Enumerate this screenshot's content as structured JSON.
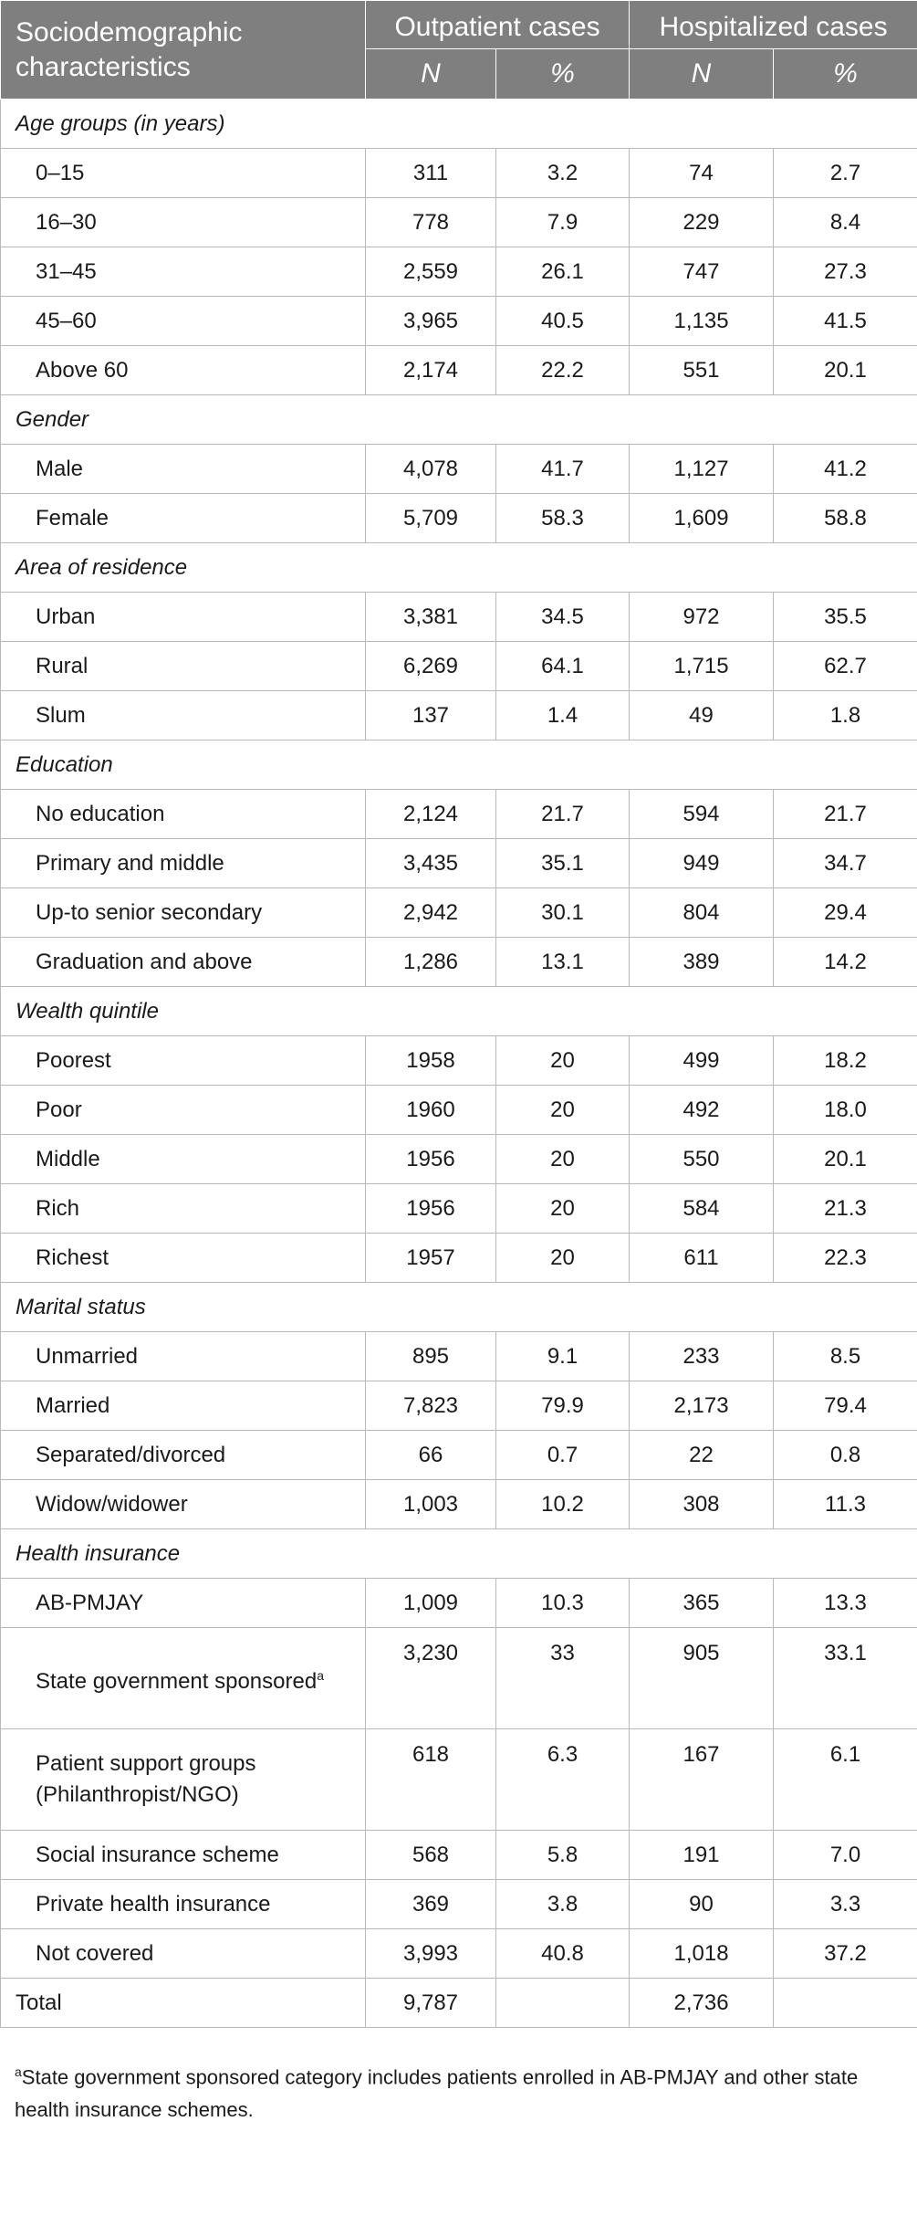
{
  "table": {
    "header": {
      "title": "Sociodemographic characteristics",
      "groups": [
        "Outpatient cases",
        "Hospitalized cases"
      ],
      "subheaders": [
        "N",
        "%",
        "N",
        "%"
      ]
    },
    "sections": [
      {
        "name": "Age groups (in years)",
        "rows": [
          {
            "label": "0–15",
            "op_n": "311",
            "op_pct": "3.2",
            "hp_n": "74",
            "hp_pct": "2.7"
          },
          {
            "label": "16–30",
            "op_n": "778",
            "op_pct": "7.9",
            "hp_n": "229",
            "hp_pct": "8.4"
          },
          {
            "label": "31–45",
            "op_n": "2,559",
            "op_pct": "26.1",
            "hp_n": "747",
            "hp_pct": "27.3"
          },
          {
            "label": "45–60",
            "op_n": "3,965",
            "op_pct": "40.5",
            "hp_n": "1,135",
            "hp_pct": "41.5"
          },
          {
            "label": "Above 60",
            "op_n": "2,174",
            "op_pct": "22.2",
            "hp_n": "551",
            "hp_pct": "20.1"
          }
        ]
      },
      {
        "name": "Gender",
        "rows": [
          {
            "label": "Male",
            "op_n": "4,078",
            "op_pct": "41.7",
            "hp_n": "1,127",
            "hp_pct": "41.2"
          },
          {
            "label": "Female",
            "op_n": "5,709",
            "op_pct": "58.3",
            "hp_n": "1,609",
            "hp_pct": "58.8"
          }
        ]
      },
      {
        "name": "Area of residence",
        "rows": [
          {
            "label": "Urban",
            "op_n": "3,381",
            "op_pct": "34.5",
            "hp_n": "972",
            "hp_pct": "35.5"
          },
          {
            "label": "Rural",
            "op_n": "6,269",
            "op_pct": "64.1",
            "hp_n": "1,715",
            "hp_pct": "62.7"
          },
          {
            "label": "Slum",
            "op_n": "137",
            "op_pct": "1.4",
            "hp_n": "49",
            "hp_pct": "1.8"
          }
        ]
      },
      {
        "name": "Education",
        "rows": [
          {
            "label": "No education",
            "op_n": "2,124",
            "op_pct": "21.7",
            "hp_n": "594",
            "hp_pct": "21.7"
          },
          {
            "label": "Primary and middle",
            "op_n": "3,435",
            "op_pct": "35.1",
            "hp_n": "949",
            "hp_pct": "34.7"
          },
          {
            "label": "Up-to senior secondary",
            "op_n": "2,942",
            "op_pct": "30.1",
            "hp_n": "804",
            "hp_pct": "29.4"
          },
          {
            "label": "Graduation and above",
            "op_n": "1,286",
            "op_pct": "13.1",
            "hp_n": "389",
            "hp_pct": "14.2"
          }
        ]
      },
      {
        "name": "Wealth quintile",
        "rows": [
          {
            "label": "Poorest",
            "op_n": "1958",
            "op_pct": "20",
            "hp_n": "499",
            "hp_pct": "18.2"
          },
          {
            "label": "Poor",
            "op_n": "1960",
            "op_pct": "20",
            "hp_n": "492",
            "hp_pct": "18.0"
          },
          {
            "label": "Middle",
            "op_n": "1956",
            "op_pct": "20",
            "hp_n": "550",
            "hp_pct": "20.1"
          },
          {
            "label": "Rich",
            "op_n": "1956",
            "op_pct": "20",
            "hp_n": "584",
            "hp_pct": "21.3"
          },
          {
            "label": "Richest",
            "op_n": "1957",
            "op_pct": "20",
            "hp_n": "611",
            "hp_pct": "22.3"
          }
        ]
      },
      {
        "name": "Marital status",
        "rows": [
          {
            "label": "Unmarried",
            "op_n": "895",
            "op_pct": "9.1",
            "hp_n": "233",
            "hp_pct": "8.5"
          },
          {
            "label": "Married",
            "op_n": "7,823",
            "op_pct": "79.9",
            "hp_n": "2,173",
            "hp_pct": "79.4"
          },
          {
            "label": "Separated/divorced",
            "op_n": "66",
            "op_pct": "0.7",
            "hp_n": "22",
            "hp_pct": "0.8"
          },
          {
            "label": "Widow/widower",
            "op_n": "1,003",
            "op_pct": "10.2",
            "hp_n": "308",
            "hp_pct": "11.3"
          }
        ]
      },
      {
        "name": "Health insurance",
        "rows": [
          {
            "label": "AB-PMJAY",
            "op_n": "1,009",
            "op_pct": "10.3",
            "hp_n": "365",
            "hp_pct": "13.3"
          },
          {
            "label": "State government sponsored",
            "sup": "a",
            "op_n": "3,230",
            "op_pct": "33",
            "hp_n": "905",
            "hp_pct": "33.1"
          },
          {
            "label": "Patient support groups (Philanthropist/NGO)",
            "op_n": "618",
            "op_pct": "6.3",
            "hp_n": "167",
            "hp_pct": "6.1"
          },
          {
            "label": "Social insurance scheme",
            "op_n": "568",
            "op_pct": "5.8",
            "hp_n": "191",
            "hp_pct": "7.0"
          },
          {
            "label": "Private health insurance",
            "op_n": "369",
            "op_pct": "3.8",
            "hp_n": "90",
            "hp_pct": "3.3"
          },
          {
            "label": "Not covered",
            "op_n": "3,993",
            "op_pct": "40.8",
            "hp_n": "1,018",
            "hp_pct": "37.2"
          }
        ]
      }
    ],
    "total": {
      "label": "Total",
      "op_n": "9,787",
      "op_pct": "",
      "hp_n": "2,736",
      "hp_pct": ""
    }
  },
  "footnote": {
    "marker": "a",
    "text": "State government sponsored category includes patients enrolled in AB-PMJAY and other state health insurance schemes."
  }
}
